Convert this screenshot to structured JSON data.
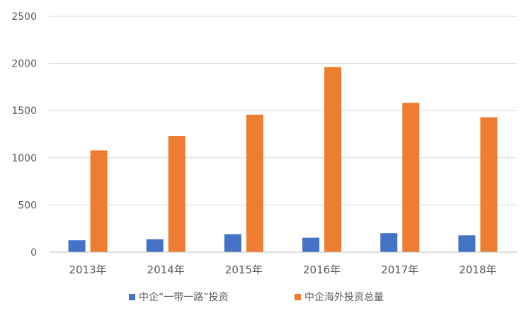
{
  "chart_data": {
    "type": "bar",
    "categories": [
      "2013年",
      "2014年",
      "2015年",
      "2016年",
      "2017年",
      "2018年"
    ],
    "series": [
      {
        "name": "中企“一带一路”投资",
        "color": "#4472C4",
        "values": [
          126,
          136,
          190,
          153,
          201,
          178
        ]
      },
      {
        "name": "中企海外投资总量",
        "color": "#ED7D31",
        "values": [
          1078,
          1231,
          1457,
          1961,
          1583,
          1430
        ]
      }
    ],
    "ylim": [
      0,
      2500
    ],
    "yticks": [
      0,
      500,
      1000,
      1500,
      2000,
      2500
    ],
    "grid": true,
    "legend": "bottom"
  }
}
